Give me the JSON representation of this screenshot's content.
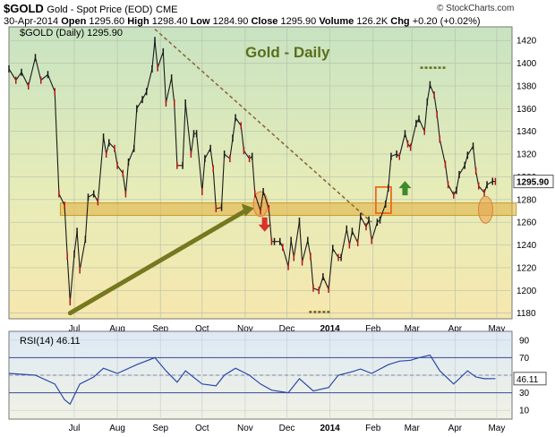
{
  "header": {
    "symbol": "$GOLD",
    "name": "Gold - Spot Price (EOD)",
    "exchange": "CME",
    "date": "30-Apr-2014",
    "open_label": "Open",
    "open": "1295.60",
    "high_label": "High",
    "high": "1298.40",
    "low_label": "Low",
    "low": "1284.90",
    "close_label": "Close",
    "close": "1295.90",
    "volume_label": "Volume",
    "volume": "126.2K",
    "chg_label": "Chg",
    "chg": "+0.20 (+0.02%)",
    "credit": "© StockCharts.com"
  },
  "chart_data": [
    {
      "type": "line",
      "legend": "$GOLD (Daily) 1295.90",
      "annotation_title": "Gold - Daily",
      "last_price_label": "1295.90",
      "ylim": [
        1175,
        1432
      ],
      "yticks": [
        "1180",
        "1200",
        "1220",
        "1240",
        "1260",
        "1280",
        "1300",
        "1320",
        "1340",
        "1360",
        "1380",
        "1400",
        "1420"
      ],
      "x_months": [
        "Jul",
        "Aug",
        "Sep",
        "Oct",
        "Nov",
        "Dec",
        "2014",
        "Feb",
        "Mar",
        "Apr",
        "May"
      ],
      "support_zone": [
        1266,
        1277
      ],
      "trendlines": [
        {
          "name": "uptrend",
          "from": [
            "2013-06-28",
            1180
          ],
          "to": [
            "2013-11-01",
            1270
          ]
        },
        {
          "name": "downtrend",
          "from": [
            "2013-08-28",
            1430
          ],
          "to": [
            "2014-01-31",
            1260
          ]
        }
      ],
      "series": [
        {
          "values": [
            [
              "2013-05-15",
              1395
            ],
            [
              "2013-05-20",
              1385
            ],
            [
              "2013-05-24",
              1392
            ],
            [
              "2013-05-29",
              1380
            ],
            [
              "2013-06-03",
              1405
            ],
            [
              "2013-06-07",
              1385
            ],
            [
              "2013-06-12",
              1390
            ],
            [
              "2013-06-17",
              1375
            ],
            [
              "2013-06-20",
              1285
            ],
            [
              "2013-06-24",
              1275
            ],
            [
              "2013-06-26",
              1230
            ],
            [
              "2013-06-28",
              1190
            ],
            [
              "2013-07-01",
              1232
            ],
            [
              "2013-07-03",
              1252
            ],
            [
              "2013-07-05",
              1218
            ],
            [
              "2013-07-09",
              1245
            ],
            [
              "2013-07-11",
              1282
            ],
            [
              "2013-07-15",
              1285
            ],
            [
              "2013-07-18",
              1278
            ],
            [
              "2013-07-22",
              1335
            ],
            [
              "2013-07-24",
              1320
            ],
            [
              "2013-07-26",
              1330
            ],
            [
              "2013-07-30",
              1325
            ],
            [
              "2013-08-01",
              1310
            ],
            [
              "2013-08-05",
              1303
            ],
            [
              "2013-08-07",
              1285
            ],
            [
              "2013-08-09",
              1313
            ],
            [
              "2013-08-13",
              1325
            ],
            [
              "2013-08-15",
              1360
            ],
            [
              "2013-08-19",
              1368
            ],
            [
              "2013-08-22",
              1375
            ],
            [
              "2013-08-26",
              1395
            ],
            [
              "2013-08-28",
              1420
            ],
            [
              "2013-08-30",
              1396
            ],
            [
              "2013-09-03",
              1410
            ],
            [
              "2013-09-05",
              1365
            ],
            [
              "2013-09-09",
              1387
            ],
            [
              "2013-09-11",
              1365
            ],
            [
              "2013-09-13",
              1310
            ],
            [
              "2013-09-17",
              1310
            ],
            [
              "2013-09-19",
              1365
            ],
            [
              "2013-09-23",
              1320
            ],
            [
              "2013-09-25",
              1338
            ],
            [
              "2013-09-27",
              1338
            ],
            [
              "2013-10-01",
              1287
            ],
            [
              "2013-10-03",
              1316
            ],
            [
              "2013-10-07",
              1325
            ],
            [
              "2013-10-09",
              1307
            ],
            [
              "2013-10-11",
              1272
            ],
            [
              "2013-10-15",
              1273
            ],
            [
              "2013-10-17",
              1320
            ],
            [
              "2013-10-21",
              1316
            ],
            [
              "2013-10-23",
              1334
            ],
            [
              "2013-10-25",
              1352
            ],
            [
              "2013-10-29",
              1345
            ],
            [
              "2013-10-31",
              1323
            ],
            [
              "2013-11-04",
              1316
            ],
            [
              "2013-11-06",
              1318
            ],
            [
              "2013-11-08",
              1285
            ],
            [
              "2013-11-12",
              1270
            ],
            [
              "2013-11-14",
              1287
            ],
            [
              "2013-11-18",
              1272
            ],
            [
              "2013-11-20",
              1243
            ],
            [
              "2013-11-22",
              1243
            ],
            [
              "2013-11-26",
              1243
            ],
            [
              "2013-11-28",
              1238
            ],
            [
              "2013-12-02",
              1221
            ],
            [
              "2013-12-04",
              1244
            ],
            [
              "2013-12-06",
              1229
            ],
            [
              "2013-12-10",
              1261
            ],
            [
              "2013-12-12",
              1225
            ],
            [
              "2013-12-16",
              1244
            ],
            [
              "2013-12-18",
              1230
            ],
            [
              "2013-12-20",
              1202
            ],
            [
              "2013-12-24",
              1200
            ],
            [
              "2013-12-27",
              1212
            ],
            [
              "2013-12-31",
              1201
            ],
            [
              "2014-01-03",
              1237
            ],
            [
              "2014-01-07",
              1229
            ],
            [
              "2014-01-09",
              1229
            ],
            [
              "2014-01-13",
              1254
            ],
            [
              "2014-01-15",
              1240
            ],
            [
              "2014-01-17",
              1252
            ],
            [
              "2014-01-21",
              1242
            ],
            [
              "2014-01-23",
              1265
            ],
            [
              "2014-01-27",
              1256
            ],
            [
              "2014-01-29",
              1262
            ],
            [
              "2014-01-31",
              1244
            ],
            [
              "2014-02-04",
              1260
            ],
            [
              "2014-02-06",
              1262
            ],
            [
              "2014-02-10",
              1276
            ],
            [
              "2014-02-12",
              1290
            ],
            [
              "2014-02-14",
              1318
            ],
            [
              "2014-02-18",
              1320
            ],
            [
              "2014-02-20",
              1318
            ],
            [
              "2014-02-24",
              1338
            ],
            [
              "2014-02-26",
              1329
            ],
            [
              "2014-02-28",
              1326
            ],
            [
              "2014-03-04",
              1347
            ],
            [
              "2014-03-06",
              1351
            ],
            [
              "2014-03-10",
              1340
            ],
            [
              "2014-03-12",
              1366
            ],
            [
              "2014-03-14",
              1381
            ],
            [
              "2014-03-17",
              1372
            ],
            [
              "2014-03-19",
              1355
            ],
            [
              "2014-03-21",
              1333
            ],
            [
              "2014-03-25",
              1311
            ],
            [
              "2014-03-27",
              1293
            ],
            [
              "2014-03-31",
              1284
            ],
            [
              "2014-04-02",
              1288
            ],
            [
              "2014-04-04",
              1302
            ],
            [
              "2014-04-08",
              1310
            ],
            [
              "2014-04-10",
              1319
            ],
            [
              "2014-04-14",
              1327
            ],
            [
              "2014-04-16",
              1305
            ],
            [
              "2014-04-18",
              1292
            ],
            [
              "2014-04-22",
              1286
            ],
            [
              "2014-04-24",
              1293
            ],
            [
              "2014-04-28",
              1296
            ],
            [
              "2014-04-30",
              1295.9
            ]
          ]
        }
      ]
    },
    {
      "type": "line",
      "legend": "RSI(14) 46.11",
      "last_value_label": "46.11",
      "ylim": [
        0,
        100
      ],
      "yticks": [
        "10",
        "30",
        "50",
        "70",
        "90"
      ],
      "bands": [
        30,
        70
      ],
      "x_months": [
        "Jul",
        "Aug",
        "Sep",
        "Oct",
        "Nov",
        "Dec",
        "2014",
        "Feb",
        "Mar",
        "Apr",
        "May"
      ],
      "series": [
        {
          "values": [
            [
              "2013-05-15",
              52
            ],
            [
              "2013-06-03",
              50
            ],
            [
              "2013-06-17",
              40
            ],
            [
              "2013-06-24",
              22
            ],
            [
              "2013-06-28",
              17
            ],
            [
              "2013-07-05",
              40
            ],
            [
              "2013-07-15",
              48
            ],
            [
              "2013-07-22",
              58
            ],
            [
              "2013-08-01",
              52
            ],
            [
              "2013-08-15",
              62
            ],
            [
              "2013-08-28",
              70
            ],
            [
              "2013-09-05",
              55
            ],
            [
              "2013-09-13",
              42
            ],
            [
              "2013-09-19",
              55
            ],
            [
              "2013-10-01",
              40
            ],
            [
              "2013-10-11",
              38
            ],
            [
              "2013-10-17",
              50
            ],
            [
              "2013-10-25",
              58
            ],
            [
              "2013-11-04",
              50
            ],
            [
              "2013-11-12",
              40
            ],
            [
              "2013-11-20",
              33
            ],
            [
              "2013-12-02",
              30
            ],
            [
              "2013-12-10",
              46
            ],
            [
              "2013-12-20",
              32
            ],
            [
              "2013-12-31",
              36
            ],
            [
              "2014-01-07",
              50
            ],
            [
              "2014-01-17",
              54
            ],
            [
              "2014-01-23",
              57
            ],
            [
              "2014-01-31",
              52
            ],
            [
              "2014-02-12",
              62
            ],
            [
              "2014-02-20",
              66
            ],
            [
              "2014-02-28",
              67
            ],
            [
              "2014-03-06",
              70
            ],
            [
              "2014-03-14",
              73
            ],
            [
              "2014-03-21",
              55
            ],
            [
              "2014-03-31",
              40
            ],
            [
              "2014-04-10",
              55
            ],
            [
              "2014-04-16",
              48
            ],
            [
              "2014-04-22",
              46
            ],
            [
              "2014-04-30",
              46.11
            ]
          ]
        }
      ]
    }
  ]
}
